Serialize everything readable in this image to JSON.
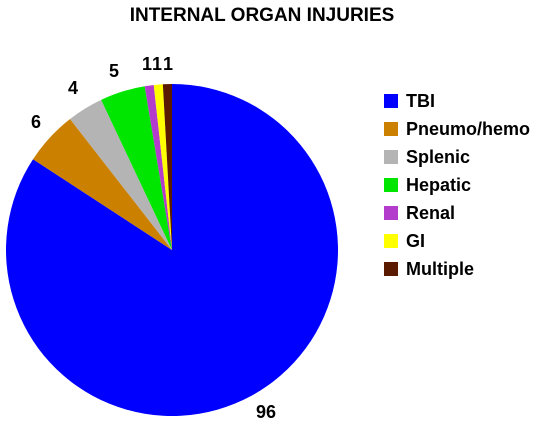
{
  "chart_data": {
    "type": "pie",
    "title": "INTERNAL ORGAN INJURIES",
    "categories": [
      "TBI",
      "Pneumo/hemo",
      "Splenic",
      "Hepatic",
      "Renal",
      "GI",
      "Multiple"
    ],
    "values": [
      96,
      6,
      4,
      5,
      1,
      1,
      1
    ],
    "data_labels": [
      "96",
      "6",
      "4",
      "5",
      "1",
      "1",
      "1"
    ],
    "colors": [
      "#0000ff",
      "#cc8000",
      "#b4b4b4",
      "#00e600",
      "#b33ccc",
      "#ffff00",
      "#5a1a00"
    ],
    "legend_position": "right"
  }
}
